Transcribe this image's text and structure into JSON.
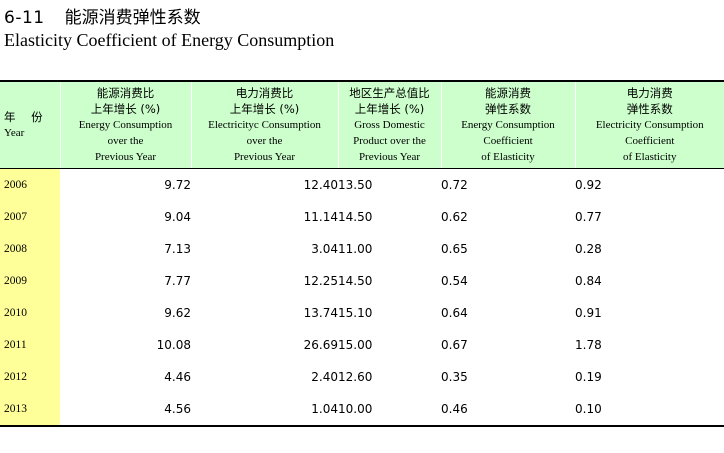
{
  "table_code": "6-11",
  "title_cn": "能源消费弹性系数",
  "title_en": "Elasticity Coefficient of Energy Consumption",
  "headers": [
    {
      "cn": "年 份",
      "en": [
        "Year"
      ]
    },
    {
      "cn": "能源消费比上年增长 (%)",
      "cn_lines": [
        "能源消费比",
        "上年增长 (%)"
      ],
      "en": [
        "Energy Consumption",
        "over the",
        "Previous Year"
      ]
    },
    {
      "cn": "电力消费比上年增长 (%)",
      "cn_lines": [
        "电力消费比",
        "上年增长 (%)"
      ],
      "en": [
        "Electricityc Consumption",
        "over the",
        "Previous Year"
      ]
    },
    {
      "cn": "地区生产总值比上年增长 (%)",
      "cn_lines": [
        "地区生产总值比",
        "上年增长 (%)"
      ],
      "en": [
        "Gross Domestic",
        "Product over the",
        "Previous Year"
      ]
    },
    {
      "cn": "能源消费弹性系数",
      "cn_lines": [
        "能源消费",
        "弹性系数"
      ],
      "en": [
        "Energy Consumption",
        "Coefficient",
        "of Elasticity"
      ]
    },
    {
      "cn": "电力消费弹性系数",
      "cn_lines": [
        "电力消费",
        "弹性系数"
      ],
      "en": [
        "Electricity Consumption",
        "Coefficient",
        "of Elasticity"
      ]
    }
  ],
  "rows": [
    {
      "year": "2006",
      "energy_growth": "9.72",
      "electricity_growth": "12.40",
      "gdp_growth": "13.50",
      "energy_elasticity": "0.72",
      "electricity_elasticity": "0.92"
    },
    {
      "year": "2007",
      "energy_growth": "9.04",
      "electricity_growth": "11.14",
      "gdp_growth": "14.50",
      "energy_elasticity": "0.62",
      "electricity_elasticity": "0.77"
    },
    {
      "year": "2008",
      "energy_growth": "7.13",
      "electricity_growth": "3.04",
      "gdp_growth": "11.00",
      "energy_elasticity": "0.65",
      "electricity_elasticity": "0.28"
    },
    {
      "year": "2009",
      "energy_growth": "7.77",
      "electricity_growth": "12.25",
      "gdp_growth": "14.50",
      "energy_elasticity": "0.54",
      "electricity_elasticity": "0.84"
    },
    {
      "year": "2010",
      "energy_growth": "9.62",
      "electricity_growth": "13.74",
      "gdp_growth": "15.10",
      "energy_elasticity": "0.64",
      "electricity_elasticity": "0.91"
    },
    {
      "year": "2011",
      "energy_growth": "10.08",
      "electricity_growth": "26.69",
      "gdp_growth": "15.00",
      "energy_elasticity": "0.67",
      "electricity_elasticity": "1.78"
    },
    {
      "year": "2012",
      "energy_growth": "4.46",
      "electricity_growth": "2.40",
      "gdp_growth": "12.60",
      "energy_elasticity": "0.35",
      "electricity_elasticity": "0.19"
    },
    {
      "year": "2013",
      "energy_growth": "4.56",
      "electricity_growth": "1.04",
      "gdp_growth": "10.00",
      "energy_elasticity": "0.46",
      "electricity_elasticity": "0.10"
    }
  ],
  "colors": {
    "header_bg": "#ccffcc",
    "year_col_bg": "#ffff99",
    "rule": "#000000"
  }
}
